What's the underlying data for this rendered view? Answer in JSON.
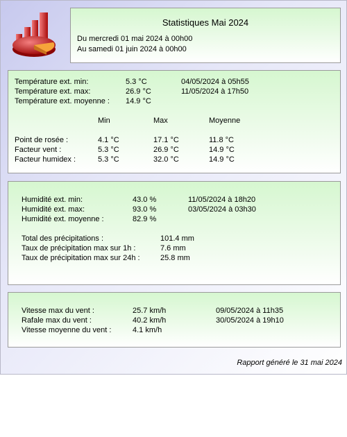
{
  "header": {
    "title": "Statistiques Mai 2024",
    "from": "Du mercredi 01 mai 2024 à 00h00",
    "to": "Au samedi 01 juin 2024 à 00h00"
  },
  "temperature": {
    "min": {
      "label": "Température ext. min:",
      "value": "5.3 °C",
      "date": "04/05/2024 à 05h55"
    },
    "max": {
      "label": "Température ext. max:",
      "value": "26.9 °C",
      "date": "11/05/2024 à 17h50"
    },
    "avg": {
      "label": "Température ext. moyenne :",
      "value": "14.9 °C"
    },
    "col_min": "Min",
    "col_max": "Max",
    "col_avg": "Moyenne",
    "rows": [
      {
        "label": "Point de rosée :",
        "min": "4.1 °C",
        "max": "17.1 °C",
        "avg": "11.8 °C"
      },
      {
        "label": "Facteur vent :",
        "min": "5.3 °C",
        "max": "26.9 °C",
        "avg": "14.9 °C"
      },
      {
        "label": "Facteur humidex :",
        "min": "5.3 °C",
        "max": "32.0 °C",
        "avg": "14.9 °C"
      }
    ]
  },
  "humidity": {
    "min": {
      "label": "Humidité ext. min:",
      "value": "43.0 %",
      "date": "11/05/2024 à 18h20"
    },
    "max": {
      "label": "Humidité ext. max:",
      "value": "93.0 %",
      "date": "03/05/2024 à 03h30"
    },
    "avg": {
      "label": "Humidité ext. moyenne :",
      "value": "82.9 %"
    }
  },
  "precipitation": {
    "total": {
      "label": "Total des précipitations :",
      "value": "101.4 mm"
    },
    "max1h": {
      "label": "Taux de précipitation max sur 1h :",
      "value": "7.6 mm"
    },
    "max24h": {
      "label": "Taux de précipitation max sur 24h :",
      "value": "25.8 mm"
    }
  },
  "wind": {
    "max": {
      "label": "Vitesse max du vent :",
      "value": "25.7 km/h",
      "date": "09/05/2024 à 11h35"
    },
    "gust": {
      "label": "Rafale max du vent :",
      "value": "40.2 km/h",
      "date": "30/05/2024 à 19h10"
    },
    "avg": {
      "label": "Vitesse moyenne du vent :",
      "value": "4.1 km/h"
    }
  },
  "footer": "Rapport généré le 31 mai 2024",
  "logo_icon": "statistics-chart-icon",
  "colors": {
    "panel_green": "#d6f7d0",
    "page_blue": "#c7c9ee"
  }
}
